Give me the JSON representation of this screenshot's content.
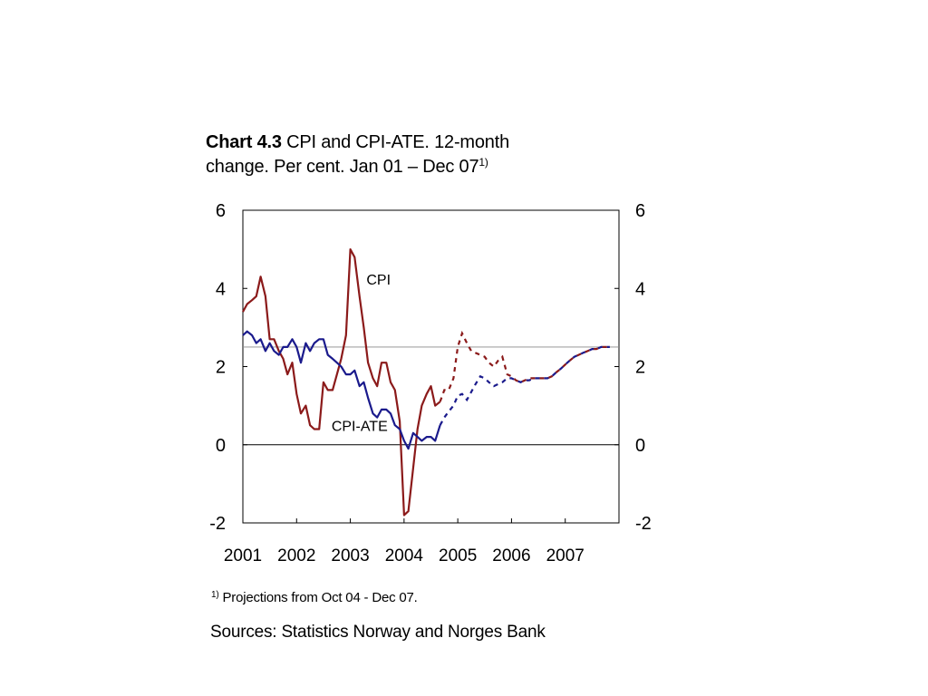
{
  "title": {
    "bold": "Chart 4.3",
    "text_line1": " CPI and CPI-ATE. 12-month",
    "text_line2": "change. Per cent. Jan 01 – Dec 07",
    "note_marker": "1)"
  },
  "footnote": {
    "marker": "1)",
    "text": " Projections from Oct 04 - Dec 07."
  },
  "sources": "Sources: Statistics Norway and Norges Bank",
  "chart_data": {
    "type": "line",
    "title": "Chart 4.3 CPI and CPI-ATE. 12-month change. Per cent. Jan 01 – Dec 07",
    "xlabel": "",
    "ylabel": "",
    "x_range": [
      2001.0,
      2008.0
    ],
    "ylim": [
      -2,
      6
    ],
    "y_ticks": [
      -2,
      0,
      2,
      4,
      6
    ],
    "y_tick_labels": [
      "-2",
      "0",
      "2",
      "4",
      "6"
    ],
    "y_axes": [
      "left",
      "right"
    ],
    "x_tick_labels": [
      "2001",
      "2002",
      "2003",
      "2004",
      "2005",
      "2006",
      "2007"
    ],
    "x_tick_label_positions": [
      2001.0,
      2002.0,
      2003.0,
      2004.0,
      2005.0,
      2006.0,
      2007.0
    ],
    "reference_lines": [
      {
        "y": 0,
        "color": "#000000",
        "style": "solid"
      },
      {
        "y": 2.5,
        "color": "#888888",
        "style": "solid"
      }
    ],
    "grid": false,
    "legend": "inline labels",
    "projection_start": "Oct 04",
    "series": [
      {
        "name": "CPI",
        "color": "#8B1A1A",
        "actual": [
          [
            2001.0,
            3.4
          ],
          [
            2001.08,
            3.6
          ],
          [
            2001.17,
            3.7
          ],
          [
            2001.25,
            3.8
          ],
          [
            2001.33,
            4.3
          ],
          [
            2001.42,
            3.8
          ],
          [
            2001.5,
            2.7
          ],
          [
            2001.58,
            2.7
          ],
          [
            2001.67,
            2.4
          ],
          [
            2001.75,
            2.2
          ],
          [
            2001.83,
            1.8
          ],
          [
            2001.92,
            2.1
          ],
          [
            2002.0,
            1.3
          ],
          [
            2002.08,
            0.8
          ],
          [
            2002.17,
            1.0
          ],
          [
            2002.25,
            0.5
          ],
          [
            2002.33,
            0.4
          ],
          [
            2002.42,
            0.4
          ],
          [
            2002.5,
            1.6
          ],
          [
            2002.58,
            1.4
          ],
          [
            2002.67,
            1.4
          ],
          [
            2002.75,
            1.8
          ],
          [
            2002.83,
            2.2
          ],
          [
            2002.92,
            2.8
          ],
          [
            2003.0,
            5.0
          ],
          [
            2003.08,
            4.8
          ],
          [
            2003.17,
            3.8
          ],
          [
            2003.25,
            3.0
          ],
          [
            2003.33,
            2.1
          ],
          [
            2003.42,
            1.7
          ],
          [
            2003.5,
            1.5
          ],
          [
            2003.58,
            2.1
          ],
          [
            2003.67,
            2.1
          ],
          [
            2003.75,
            1.6
          ],
          [
            2003.83,
            1.4
          ],
          [
            2003.92,
            0.6
          ],
          [
            2004.0,
            -1.8
          ],
          [
            2004.08,
            -1.7
          ],
          [
            2004.17,
            -0.6
          ],
          [
            2004.25,
            0.4
          ],
          [
            2004.33,
            1.0
          ],
          [
            2004.42,
            1.3
          ],
          [
            2004.5,
            1.5
          ],
          [
            2004.58,
            1.0
          ],
          [
            2004.67,
            1.1
          ]
        ],
        "projection": [
          [
            2004.67,
            1.1
          ],
          [
            2004.75,
            1.4
          ],
          [
            2004.83,
            1.4
          ],
          [
            2004.92,
            1.7
          ],
          [
            2005.0,
            2.5
          ],
          [
            2005.08,
            2.85
          ],
          [
            2005.17,
            2.6
          ],
          [
            2005.25,
            2.4
          ],
          [
            2005.33,
            2.35
          ],
          [
            2005.42,
            2.3
          ],
          [
            2005.5,
            2.25
          ],
          [
            2005.58,
            2.1
          ],
          [
            2005.67,
            2.0
          ],
          [
            2005.75,
            2.15
          ],
          [
            2005.83,
            2.25
          ],
          [
            2005.92,
            1.8
          ],
          [
            2006.0,
            1.75
          ],
          [
            2006.08,
            1.65
          ],
          [
            2006.17,
            1.6
          ],
          [
            2006.25,
            1.65
          ],
          [
            2006.33,
            1.7
          ],
          [
            2006.42,
            1.7
          ],
          [
            2006.5,
            1.7
          ],
          [
            2006.58,
            1.7
          ],
          [
            2006.67,
            1.7
          ],
          [
            2006.75,
            1.75
          ],
          [
            2006.83,
            1.85
          ],
          [
            2006.92,
            1.95
          ],
          [
            2007.0,
            2.05
          ],
          [
            2007.08,
            2.15
          ],
          [
            2007.17,
            2.25
          ],
          [
            2007.25,
            2.3
          ],
          [
            2007.33,
            2.35
          ],
          [
            2007.42,
            2.4
          ],
          [
            2007.5,
            2.45
          ],
          [
            2007.58,
            2.45
          ],
          [
            2007.67,
            2.5
          ],
          [
            2007.75,
            2.5
          ],
          [
            2007.83,
            2.5
          ]
        ]
      },
      {
        "name": "CPI-ATE",
        "color": "#1A1A8C",
        "actual": [
          [
            2001.0,
            2.8
          ],
          [
            2001.08,
            2.9
          ],
          [
            2001.17,
            2.8
          ],
          [
            2001.25,
            2.6
          ],
          [
            2001.33,
            2.7
          ],
          [
            2001.42,
            2.4
          ],
          [
            2001.5,
            2.6
          ],
          [
            2001.58,
            2.4
          ],
          [
            2001.67,
            2.3
          ],
          [
            2001.75,
            2.5
          ],
          [
            2001.83,
            2.5
          ],
          [
            2001.92,
            2.7
          ],
          [
            2002.0,
            2.5
          ],
          [
            2002.08,
            2.1
          ],
          [
            2002.17,
            2.6
          ],
          [
            2002.25,
            2.4
          ],
          [
            2002.33,
            2.6
          ],
          [
            2002.42,
            2.7
          ],
          [
            2002.5,
            2.7
          ],
          [
            2002.58,
            2.3
          ],
          [
            2002.67,
            2.2
          ],
          [
            2002.75,
            2.1
          ],
          [
            2002.83,
            2.0
          ],
          [
            2002.92,
            1.8
          ],
          [
            2003.0,
            1.8
          ],
          [
            2003.08,
            1.9
          ],
          [
            2003.17,
            1.5
          ],
          [
            2003.25,
            1.6
          ],
          [
            2003.33,
            1.2
          ],
          [
            2003.42,
            0.8
          ],
          [
            2003.5,
            0.7
          ],
          [
            2003.58,
            0.9
          ],
          [
            2003.67,
            0.9
          ],
          [
            2003.75,
            0.8
          ],
          [
            2003.83,
            0.5
          ],
          [
            2003.92,
            0.4
          ],
          [
            2004.0,
            0.1
          ],
          [
            2004.08,
            -0.1
          ],
          [
            2004.17,
            0.3
          ],
          [
            2004.25,
            0.2
          ],
          [
            2004.33,
            0.1
          ],
          [
            2004.42,
            0.2
          ],
          [
            2004.5,
            0.2
          ],
          [
            2004.58,
            0.1
          ],
          [
            2004.67,
            0.5
          ]
        ],
        "projection": [
          [
            2004.67,
            0.5
          ],
          [
            2004.75,
            0.7
          ],
          [
            2004.83,
            0.85
          ],
          [
            2004.92,
            1.0
          ],
          [
            2005.0,
            1.25
          ],
          [
            2005.08,
            1.3
          ],
          [
            2005.17,
            1.15
          ],
          [
            2005.25,
            1.35
          ],
          [
            2005.33,
            1.55
          ],
          [
            2005.42,
            1.75
          ],
          [
            2005.5,
            1.7
          ],
          [
            2005.58,
            1.6
          ],
          [
            2005.67,
            1.5
          ],
          [
            2005.75,
            1.55
          ],
          [
            2005.83,
            1.6
          ],
          [
            2005.92,
            1.7
          ],
          [
            2006.0,
            1.7
          ],
          [
            2006.08,
            1.65
          ],
          [
            2006.17,
            1.6
          ],
          [
            2006.25,
            1.65
          ],
          [
            2006.33,
            1.65
          ],
          [
            2006.42,
            1.7
          ],
          [
            2006.5,
            1.7
          ],
          [
            2006.58,
            1.7
          ],
          [
            2006.67,
            1.7
          ],
          [
            2006.75,
            1.75
          ],
          [
            2006.83,
            1.85
          ],
          [
            2006.92,
            1.95
          ],
          [
            2007.0,
            2.05
          ],
          [
            2007.08,
            2.15
          ],
          [
            2007.17,
            2.25
          ],
          [
            2007.25,
            2.3
          ],
          [
            2007.33,
            2.35
          ],
          [
            2007.42,
            2.4
          ],
          [
            2007.5,
            2.45
          ],
          [
            2007.58,
            2.45
          ],
          [
            2007.67,
            2.5
          ],
          [
            2007.75,
            2.5
          ],
          [
            2007.83,
            2.5
          ]
        ]
      }
    ],
    "annotations": [
      {
        "text": "CPI",
        "x": 2003.3,
        "y": 4.1
      },
      {
        "text": "CPI-ATE",
        "x": 2002.65,
        "y": 0.35
      }
    ]
  }
}
